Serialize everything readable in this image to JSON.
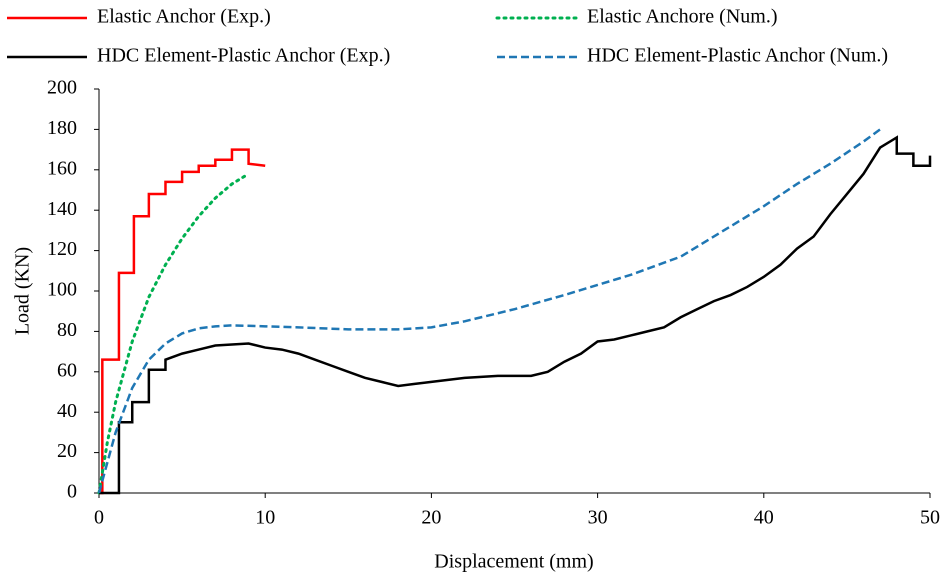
{
  "chart_data": {
    "type": "line",
    "x_label": "Displacement (mm)",
    "y_label": "Load (KN)",
    "xlim": [
      0,
      50
    ],
    "xticks": [
      0,
      10,
      20,
      30,
      40,
      50
    ],
    "ylim": [
      0,
      200
    ],
    "yticks": [
      0,
      20,
      40,
      60,
      80,
      100,
      120,
      140,
      160,
      180,
      200
    ],
    "grid": false,
    "series": [
      {
        "name": "Elastic Anchor (Exp.)",
        "color": "#ff0000",
        "dash": "solid",
        "x": [
          0,
          0.2,
          0.2,
          1.2,
          1.2,
          2.1,
          2.1,
          3,
          3,
          4,
          4,
          5,
          5,
          6,
          6,
          7,
          7,
          8,
          8,
          9,
          9,
          10
        ],
        "values": [
          0,
          0,
          66,
          66,
          109,
          109,
          137,
          137,
          148,
          148,
          154,
          154,
          159,
          159,
          162,
          162,
          165,
          165,
          170,
          170,
          163,
          162
        ]
      },
      {
        "name": "Elastic Anchore (Num.)",
        "color": "#00b050",
        "dash": "dotted",
        "x": [
          0,
          0.5,
          1,
          2,
          3,
          4,
          5,
          6,
          7,
          8,
          9
        ],
        "values": [
          0,
          25,
          45,
          75,
          97,
          113,
          126,
          137,
          146,
          153,
          158
        ]
      },
      {
        "name": "HDC Element-Plastic Anchor (Exp.)",
        "color": "#000000",
        "dash": "solid",
        "x": [
          0,
          1.2,
          1.2,
          2,
          2,
          3,
          3,
          4,
          4,
          5,
          6,
          7,
          8,
          9,
          10,
          11,
          12,
          13,
          14,
          15,
          16,
          17,
          18,
          19,
          20,
          21,
          22,
          23,
          24,
          25,
          26,
          27,
          28,
          29,
          30,
          31,
          32,
          33,
          34,
          35,
          36,
          37,
          38,
          39,
          40,
          41,
          42,
          43,
          44,
          45,
          46,
          47,
          48,
          48,
          49,
          49,
          50,
          50
        ],
        "values": [
          0,
          0,
          35,
          35,
          45,
          45,
          61,
          61,
          66,
          69,
          71,
          73,
          73.5,
          74,
          72,
          71,
          69,
          66,
          63,
          60,
          57,
          55,
          53,
          54,
          55,
          56,
          57,
          57.5,
          58,
          58,
          58,
          60,
          65,
          69,
          75,
          76,
          78,
          80,
          82,
          87,
          91,
          95,
          98,
          102,
          107,
          113,
          121,
          127,
          138,
          148,
          158,
          171,
          176,
          168,
          168,
          162,
          162,
          167
        ]
      },
      {
        "name": "HDC Element-Plastic Anchor (Num.)",
        "color": "#1f77b4",
        "dash": "dashed",
        "x": [
          0,
          0.5,
          1,
          2,
          3,
          4,
          5,
          6,
          7,
          8,
          10,
          12,
          15,
          18,
          20,
          22,
          25,
          28,
          30,
          32,
          35,
          38,
          40,
          42,
          44,
          46,
          47
        ],
        "values": [
          0,
          15,
          30,
          52,
          66,
          74,
          79,
          81.5,
          82.5,
          83,
          82.5,
          82,
          81,
          81,
          82,
          85,
          91,
          98,
          103,
          108,
          117,
          132,
          142,
          153,
          163,
          174,
          180
        ]
      }
    ]
  }
}
